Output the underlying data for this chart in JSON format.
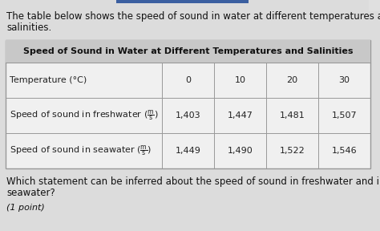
{
  "intro_text_line1": "The table below shows the speed of sound in water at different temperatures and",
  "intro_text_line2": "salinities.",
  "table_title": "Speed of Sound in Water at Different Temperatures and Salinities",
  "row_labels": [
    "Temperature (°C)",
    "Speed of sound in freshwater ($\\mathregular{\\frac{m}{s}}$)",
    "Speed of sound in seawater ($\\mathregular{\\frac{m}{s}}$)"
  ],
  "row_data": [
    [
      "0",
      "10",
      "20",
      "30"
    ],
    [
      "1,403",
      "1,447",
      "1,481",
      "1,507"
    ],
    [
      "1,449",
      "1,490",
      "1,522",
      "1,546"
    ]
  ],
  "question_line1": "Which statement can be inferred about the speed of sound in freshwater and in",
  "question_line2": "seawater?",
  "point_text": "(1 point)",
  "bg_color": "#dcdcdc",
  "table_bg": "#f0f0f0",
  "header_bg": "#c8c8c8",
  "border_color": "#999999",
  "title_fontsize": 8.0,
  "cell_fontsize": 8.0,
  "intro_fontsize": 8.5,
  "question_fontsize": 8.5,
  "point_fontsize": 8.0,
  "blue_bar_color": "#3b5fa0"
}
